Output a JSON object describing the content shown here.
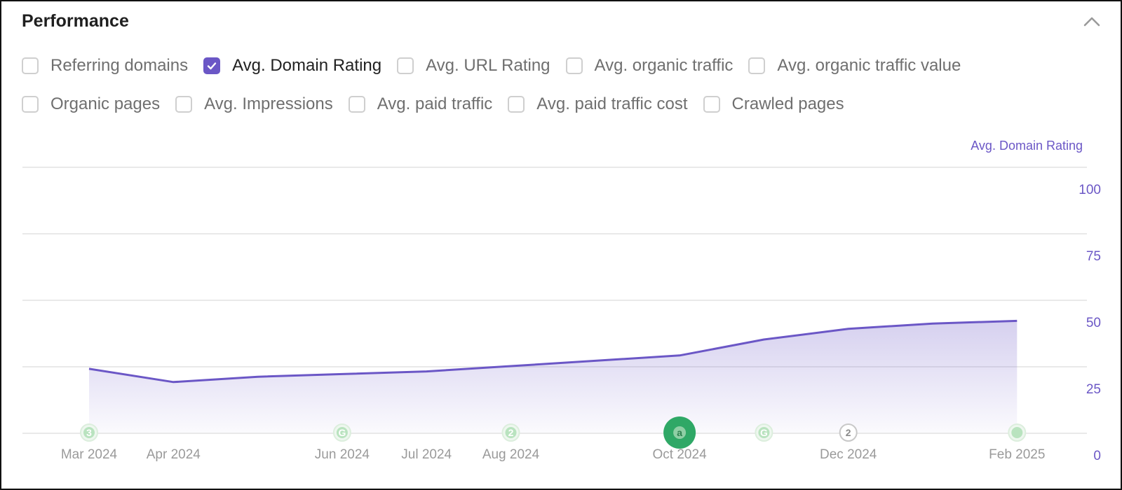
{
  "panel": {
    "title": "Performance"
  },
  "metrics": {
    "row1": [
      {
        "label": "Referring domains",
        "checked": false
      },
      {
        "label": "Avg. Domain Rating",
        "checked": true
      },
      {
        "label": "Avg. URL Rating",
        "checked": false
      },
      {
        "label": "Avg. organic traffic",
        "checked": false
      },
      {
        "label": "Avg. organic traffic value",
        "checked": false
      }
    ],
    "row2": [
      {
        "label": "Organic pages",
        "checked": false
      },
      {
        "label": "Avg. Impressions",
        "checked": false
      },
      {
        "label": "Avg. paid traffic",
        "checked": false
      },
      {
        "label": "Avg. paid traffic cost",
        "checked": false
      },
      {
        "label": "Crawled pages",
        "checked": false
      }
    ]
  },
  "colors": {
    "accent": "#6b57c6",
    "marker_light": "#b9e3bf",
    "marker_dark": "#2fa866",
    "grid": "#e9e9e9"
  },
  "chart_data": {
    "type": "area",
    "ylabel": "Avg. Domain Rating",
    "ylim": [
      0,
      100
    ],
    "yticks": [
      0,
      25,
      50,
      75,
      100
    ],
    "x_ticks": [
      "Mar 2024",
      "Apr 2024",
      "Jun 2024",
      "Jul 2024",
      "Aug 2024",
      "Oct 2024",
      "Dec 2024",
      "Feb 2025"
    ],
    "series": [
      {
        "values": [
          {
            "x": "2024-03-01",
            "y": 24
          },
          {
            "x": "2024-04-01",
            "y": 19
          },
          {
            "x": "2024-05-01",
            "y": 21
          },
          {
            "x": "2024-06-01",
            "y": 22
          },
          {
            "x": "2024-07-01",
            "y": 23
          },
          {
            "x": "2024-08-01",
            "y": 25
          },
          {
            "x": "2024-09-01",
            "y": 27
          },
          {
            "x": "2024-10-01",
            "y": 29
          },
          {
            "x": "2024-11-01",
            "y": 35
          },
          {
            "x": "2024-12-01",
            "y": 39
          },
          {
            "x": "2025-01-01",
            "y": 41
          },
          {
            "x": "2025-02-01",
            "y": 42
          }
        ]
      }
    ],
    "markers": [
      {
        "x": "2024-03-01",
        "label": "3",
        "style": "light"
      },
      {
        "x": "2024-06-01",
        "label": "G",
        "style": "light"
      },
      {
        "x": "2024-08-01",
        "label": "2",
        "style": "light"
      },
      {
        "x": "2024-10-01",
        "label": "a",
        "style": "dark"
      },
      {
        "x": "2024-11-01",
        "label": "G",
        "style": "light"
      },
      {
        "x": "2024-12-01",
        "label": "2",
        "style": "outline"
      },
      {
        "x": "2025-02-01",
        "label": "",
        "style": "light"
      }
    ],
    "grid": true
  }
}
